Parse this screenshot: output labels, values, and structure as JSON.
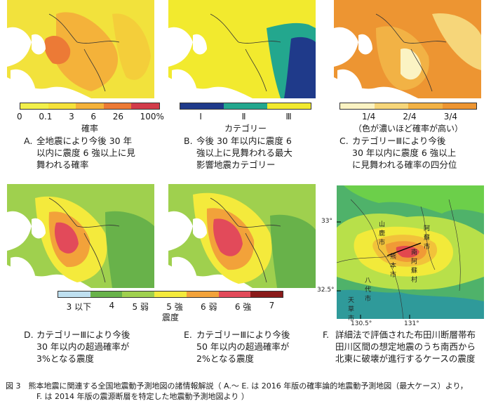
{
  "panels": {
    "a": {
      "ticks": [
        "0",
        "0.1",
        "3",
        "6",
        "26",
        "100%"
      ],
      "unit": "確率",
      "letter": "A.",
      "caption": [
        "全地震により今後 30 年",
        "以内に震度 6 強以上に見",
        "舞われる確率"
      ],
      "colors": [
        "#f2f04a",
        "#f5e23a",
        "#f4b23a",
        "#ec7a36",
        "#d23b4a"
      ]
    },
    "b": {
      "ticks": [
        "Ⅰ",
        "Ⅱ",
        "Ⅲ"
      ],
      "unit": "カテゴリー",
      "letter": "B.",
      "caption": [
        "今後 30 年以内に震度 6",
        "強以上に見舞われる最大",
        "影響地震カテゴリー"
      ],
      "colors": [
        "#1f3a8a",
        "#23a78e",
        "#f2ea2e"
      ]
    },
    "c": {
      "ticks": [
        "1/4",
        "2/4",
        "3/4"
      ],
      "unit": "（色が濃いほど確率が高い）",
      "letter": "C.",
      "caption": [
        "カテゴリーⅢにより今後",
        "30 年以内に震度 6 強以上",
        "に見舞われる確率の四分位"
      ],
      "colors": [
        "#fbf3c3",
        "#f6d67a",
        "#f2b245",
        "#ed9532"
      ]
    },
    "d": {
      "letter": "D.",
      "caption": [
        "カテゴリーⅢにより今後",
        "30 年以内の超過確率が",
        "3%となる震度"
      ]
    },
    "e": {
      "letter": "E.",
      "caption": [
        "カテゴリーⅢにより今後",
        "50 年以内の超過確率が",
        "2%となる震度"
      ]
    },
    "f": {
      "letter": "F.",
      "caption": [
        "詳細法で評価された布田川断層帯布",
        "田川区間の想定地震のうち南西から",
        "北東に破壊が進行するケースの震度"
      ],
      "lat_labels": [
        "33°",
        "32.5°"
      ],
      "lon_labels": [
        "130.5°",
        "131°"
      ],
      "places": [
        "熊本市",
        "南阿蘇村",
        "阿蘇市",
        "山鹿市",
        "八代市",
        "天草市"
      ]
    },
    "de_legend": {
      "ticks": [
        "3 以下",
        "4",
        "5 弱",
        "5 強",
        "6 弱",
        "6 強",
        "7"
      ],
      "unit": "震度",
      "colors": [
        "#bfe0f0",
        "#68b24a",
        "#9fd04e",
        "#f4ea3c",
        "#f2a23a",
        "#e24a5a",
        "#8a1a1a"
      ]
    }
  },
  "figure_caption": [
    "図 3　熊本地震に関連する全国地震動予測地図の諸情報解説（ A.～ E. は 2016 年版の確率論的地震動予測地図（最大ケース）より，",
    "F. は 2014 年版の震源断層を特定した地震動予測地図より ）"
  ]
}
